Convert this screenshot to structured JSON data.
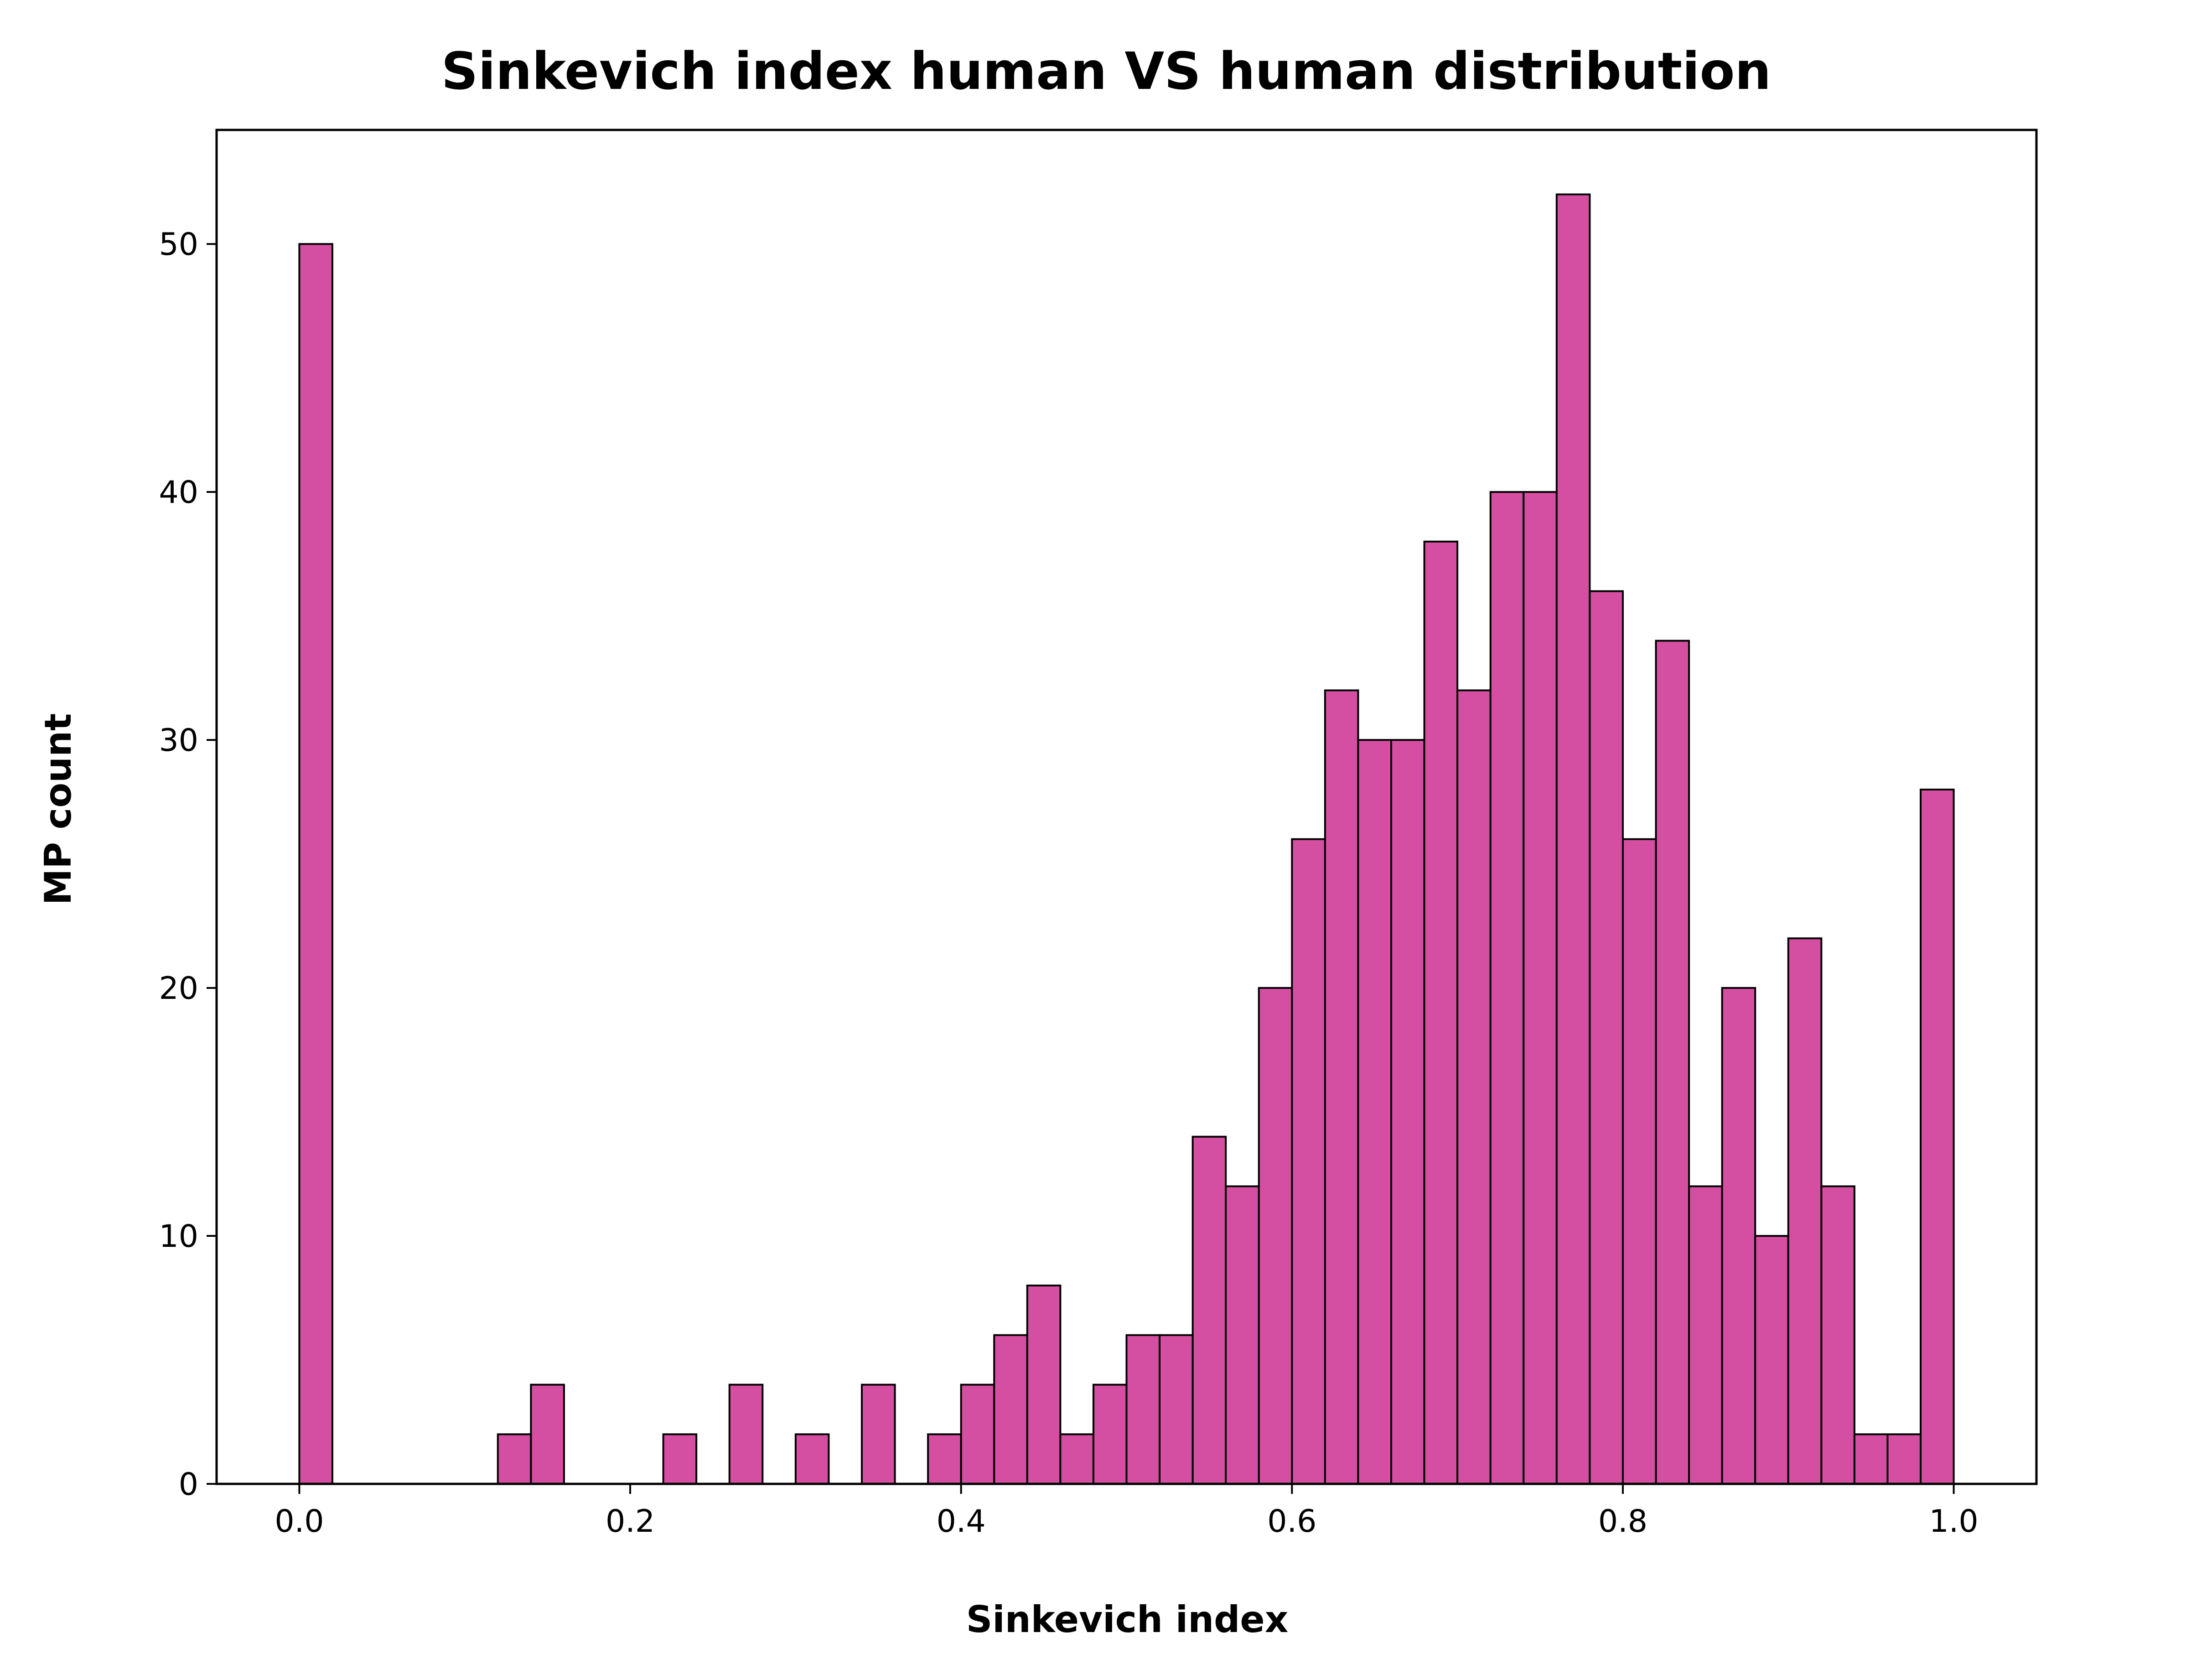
{
  "chart_data": {
    "type": "bar",
    "title": "Sinkevich index human VS human distribution",
    "xlabel": "Sinkevich index",
    "ylabel": "MP count",
    "xlim": [
      -0.05,
      1.05
    ],
    "ylim": [
      0,
      54.6
    ],
    "bin_width": 0.02,
    "bins": [
      {
        "x0": 0.0,
        "x1": 0.02,
        "count": 50
      },
      {
        "x0": 0.12,
        "x1": 0.14,
        "count": 2
      },
      {
        "x0": 0.14,
        "x1": 0.16,
        "count": 4
      },
      {
        "x0": 0.22,
        "x1": 0.24,
        "count": 2
      },
      {
        "x0": 0.26,
        "x1": 0.28,
        "count": 4
      },
      {
        "x0": 0.3,
        "x1": 0.32,
        "count": 2
      },
      {
        "x0": 0.34,
        "x1": 0.36,
        "count": 4
      },
      {
        "x0": 0.38,
        "x1": 0.4,
        "count": 2
      },
      {
        "x0": 0.4,
        "x1": 0.42,
        "count": 4
      },
      {
        "x0": 0.42,
        "x1": 0.44,
        "count": 6
      },
      {
        "x0": 0.44,
        "x1": 0.46,
        "count": 8
      },
      {
        "x0": 0.46,
        "x1": 0.48,
        "count": 2
      },
      {
        "x0": 0.48,
        "x1": 0.5,
        "count": 4
      },
      {
        "x0": 0.5,
        "x1": 0.52,
        "count": 6
      },
      {
        "x0": 0.52,
        "x1": 0.54,
        "count": 6
      },
      {
        "x0": 0.54,
        "x1": 0.56,
        "count": 14
      },
      {
        "x0": 0.56,
        "x1": 0.58,
        "count": 12
      },
      {
        "x0": 0.58,
        "x1": 0.6,
        "count": 20
      },
      {
        "x0": 0.6,
        "x1": 0.62,
        "count": 26
      },
      {
        "x0": 0.62,
        "x1": 0.64,
        "count": 32
      },
      {
        "x0": 0.64,
        "x1": 0.66,
        "count": 30
      },
      {
        "x0": 0.66,
        "x1": 0.68,
        "count": 30
      },
      {
        "x0": 0.68,
        "x1": 0.7,
        "count": 38
      },
      {
        "x0": 0.7,
        "x1": 0.72,
        "count": 32
      },
      {
        "x0": 0.72,
        "x1": 0.74,
        "count": 40
      },
      {
        "x0": 0.74,
        "x1": 0.76,
        "count": 40
      },
      {
        "x0": 0.76,
        "x1": 0.78,
        "count": 52
      },
      {
        "x0": 0.78,
        "x1": 0.8,
        "count": 36
      },
      {
        "x0": 0.8,
        "x1": 0.82,
        "count": 26
      },
      {
        "x0": 0.82,
        "x1": 0.84,
        "count": 34
      },
      {
        "x0": 0.84,
        "x1": 0.86,
        "count": 12
      },
      {
        "x0": 0.86,
        "x1": 0.88,
        "count": 20
      },
      {
        "x0": 0.88,
        "x1": 0.9,
        "count": 10
      },
      {
        "x0": 0.9,
        "x1": 0.92,
        "count": 22
      },
      {
        "x0": 0.92,
        "x1": 0.94,
        "count": 12
      },
      {
        "x0": 0.94,
        "x1": 0.96,
        "count": 2
      },
      {
        "x0": 0.96,
        "x1": 0.98,
        "count": 2
      },
      {
        "x0": 0.98,
        "x1": 1.0,
        "count": 28
      }
    ],
    "xticks": [
      0.0,
      0.2,
      0.4,
      0.6,
      0.8,
      1.0
    ],
    "xtick_labels": [
      "0.0",
      "0.2",
      "0.4",
      "0.6",
      "0.8",
      "1.0"
    ],
    "yticks": [
      0,
      10,
      20,
      30,
      40,
      50
    ],
    "ytick_labels": [
      "0",
      "10",
      "20",
      "30",
      "40",
      "50"
    ],
    "grid": false,
    "bar_color": "#d44fa2",
    "edge_color": "#000000"
  }
}
